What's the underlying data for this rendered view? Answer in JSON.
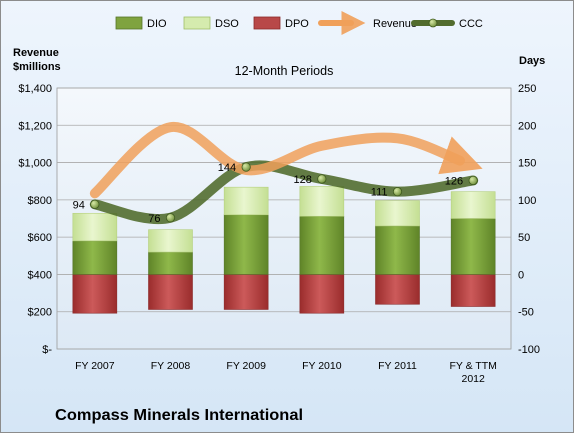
{
  "chart_data": {
    "type": "bar",
    "title": "12-Month Periods",
    "company": "Compass Minerals International",
    "left_axis_label": [
      "Revenue",
      "$millions"
    ],
    "right_axis_label": "Days",
    "categories": [
      "FY 2007",
      "FY 2008",
      "FY 2009",
      "FY 2010",
      "FY 2011",
      [
        "FY & TTM",
        "2012"
      ]
    ],
    "left_ticks": [
      "$-",
      "$200",
      "$400",
      "$600",
      "$800",
      "$1,000",
      "$1,200",
      "$1,400"
    ],
    "right_ticks": [
      "-100",
      "-50",
      "0",
      "50",
      "100",
      "150",
      "200",
      "250"
    ],
    "left_range": [
      0,
      1400
    ],
    "right_range": [
      -100,
      250
    ],
    "grid": true,
    "legend_position": "top",
    "legend": [
      {
        "name": "DIO",
        "kind": "box",
        "color": "#7fa33f"
      },
      {
        "name": "DSO",
        "kind": "box",
        "color": "#d5ebae"
      },
      {
        "name": "DPO",
        "kind": "box",
        "color": "#b84848"
      },
      {
        "name": "Revenue",
        "kind": "arrow",
        "color": "#f0a05a"
      },
      {
        "name": "CCC",
        "kind": "line",
        "color": "#526c2e"
      }
    ],
    "series": [
      {
        "name": "DIO",
        "axis": "right",
        "stacked": true,
        "values": [
          45,
          30,
          80,
          78,
          65,
          75
        ],
        "color": "#7fa33f"
      },
      {
        "name": "DSO",
        "axis": "right",
        "stacked": true,
        "values": [
          37,
          30,
          37,
          40,
          34,
          36
        ],
        "color": "#d5ebae"
      },
      {
        "name": "DPO",
        "axis": "right",
        "stacked": true,
        "values": [
          -52,
          -47,
          -47,
          -52,
          -40,
          -43
        ],
        "color": "#b84848"
      },
      {
        "name": "Revenue",
        "axis": "left",
        "type": "line",
        "values": [
          835,
          1190,
          960,
          1090,
          1130,
          985
        ],
        "color": "#f0a05a"
      },
      {
        "name": "CCC",
        "axis": "right",
        "type": "line",
        "values": [
          94,
          76,
          144,
          128,
          111,
          126
        ],
        "labels": [
          "94",
          "76",
          "144",
          "128",
          "111",
          "126"
        ],
        "color": "#526c2e"
      }
    ]
  }
}
